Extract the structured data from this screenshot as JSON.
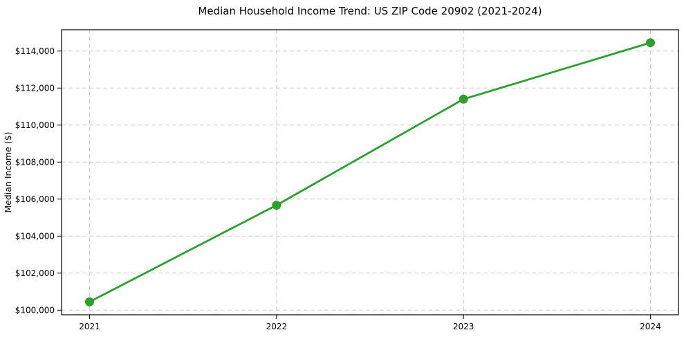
{
  "figure": {
    "title": "Median Household Income Trend: US ZIP Code 20902 (2021-2024)"
  },
  "chart_data": {
    "type": "line",
    "title": "Median Household Income Trend: US ZIP Code 20902 (2021-2024)",
    "xlabel": "",
    "ylabel": "Median Income ($)",
    "categories": [
      "2021",
      "2022",
      "2023",
      "2024"
    ],
    "series": [
      {
        "values": [
          100450,
          105670,
          111400,
          114450
        ],
        "color": "#2ca02c",
        "marker": "circle",
        "marker_radius": 6.5
      }
    ],
    "ylim": [
      99750,
      115150
    ],
    "yticks": [
      {
        "value": 100000,
        "label": "$100,000"
      },
      {
        "value": 102000,
        "label": "$102,000"
      },
      {
        "value": 104000,
        "label": "$104,000"
      },
      {
        "value": 106000,
        "label": "$106,000"
      },
      {
        "value": 108000,
        "label": "$108,000"
      },
      {
        "value": 110000,
        "label": "$110,000"
      },
      {
        "value": 112000,
        "label": "$112,000"
      },
      {
        "value": 114000,
        "label": "$114,000"
      }
    ],
    "grid": true,
    "grid_style": "dashed",
    "legend_position": "none",
    "colors": {
      "line": "#2ca02c",
      "grid": "#cccccc",
      "spine": "#000000",
      "text": "#000000",
      "background": "#ffffff"
    }
  }
}
